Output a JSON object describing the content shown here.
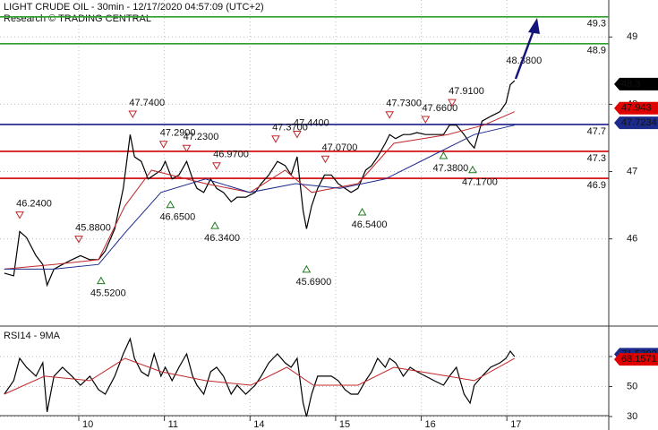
{
  "header": {
    "title": "LIGHT CRUDE OIL - 30min - 12/17/2020 04:57:09 (UTC+2)",
    "subtitle": "Research © TRADING CENTRAL"
  },
  "chart_data": [
    {
      "type": "line",
      "ylim": [
        44.73,
        49.55
      ],
      "yticks": [
        46,
        47,
        48,
        49
      ],
      "grid": true,
      "series": [
        {
          "color": "#000000",
          "x": [
            0.13,
            0.24,
            0.31,
            0.39,
            0.5,
            0.58,
            0.63,
            0.71,
            0.81,
            0.92,
            1.02,
            1.13,
            1.23,
            1.31,
            1.42,
            1.52,
            1.6,
            1.65,
            1.73,
            1.81,
            1.88,
            1.96,
            2.01,
            2.09,
            2.17,
            2.26,
            2.33,
            2.38,
            2.46,
            2.54,
            2.61,
            2.69,
            2.78,
            2.85,
            2.95,
            3.06,
            3.13,
            3.22,
            3.32,
            3.41,
            3.48,
            3.55,
            3.62,
            3.66,
            3.72,
            3.79,
            3.87,
            3.95,
            4.03,
            4.11,
            4.18,
            4.26,
            4.35,
            4.42,
            4.49,
            4.58,
            4.63,
            4.7,
            4.79,
            4.87,
            4.95,
            5.05,
            5.15,
            5.26,
            5.33,
            5.41,
            5.5,
            5.57,
            5.62,
            5.71,
            5.81,
            5.92,
            5.99,
            6.04,
            6.09
          ],
          "values": [
            45.49,
            45.45,
            46.11,
            46.02,
            45.75,
            45.62,
            45.31,
            45.55,
            45.62,
            45.69,
            45.75,
            45.69,
            45.69,
            45.82,
            46.15,
            46.75,
            47.55,
            47.22,
            47.15,
            46.89,
            46.95,
            47.02,
            47.15,
            46.89,
            46.95,
            47.15,
            46.89,
            46.75,
            46.69,
            46.89,
            46.75,
            46.69,
            46.55,
            46.62,
            46.62,
            46.69,
            46.82,
            46.95,
            47.15,
            47.09,
            46.95,
            47.22,
            46.42,
            46.15,
            46.49,
            46.75,
            46.95,
            46.95,
            46.82,
            46.75,
            46.69,
            46.75,
            47.02,
            47.09,
            47.22,
            47.42,
            47.55,
            47.49,
            47.55,
            47.55,
            47.58,
            47.55,
            47.55,
            47.55,
            47.69,
            47.69,
            47.55,
            47.42,
            47.35,
            47.75,
            47.82,
            47.89,
            48.02,
            48.29,
            48.35
          ]
        },
        {
          "color": "#c0282a",
          "x": [
            0.13,
            0.71,
            1.23,
            1.54,
            1.85,
            2.48,
            3.0,
            3.41,
            3.72,
            4.26,
            4.68,
            5.31,
            5.73,
            6.09
          ],
          "values": [
            45.55,
            45.62,
            45.69,
            46.49,
            47.02,
            46.82,
            46.69,
            47.02,
            46.69,
            46.82,
            47.42,
            47.55,
            47.69,
            47.89
          ]
        },
        {
          "color": "#1c2a8c",
          "x": [
            0.13,
            0.71,
            1.23,
            1.54,
            1.96,
            2.48,
            3.0,
            3.53,
            4.05,
            4.58,
            5.1,
            5.62,
            6.09
          ],
          "values": [
            45.55,
            45.55,
            45.62,
            46.09,
            46.69,
            46.89,
            46.69,
            46.82,
            46.75,
            46.89,
            47.22,
            47.55,
            47.69
          ]
        }
      ],
      "levels": [
        {
          "value": 49.3,
          "color": "#2e9e2e"
        },
        {
          "value": 48.9,
          "color": "#2e9e2e"
        },
        {
          "value": 47.7,
          "color": "#1c1c8c"
        },
        {
          "value": 47.3,
          "color": "#d00000"
        },
        {
          "value": 46.9,
          "color": "#d00000"
        }
      ],
      "price_tags": [
        {
          "value": 48.3,
          "color": "#000000"
        },
        {
          "value": 47.943,
          "color": "#e00000"
        },
        {
          "value": 47.7234,
          "color": "#1c2a8c"
        }
      ],
      "annotations": [
        {
          "label": "46.2400",
          "value": 46.24,
          "x": 0.31,
          "marker": "high"
        },
        {
          "label": "45.8800",
          "value": 45.88,
          "x": 1.0,
          "marker": "high"
        },
        {
          "label": "47.7400",
          "value": 47.74,
          "x": 1.63,
          "marker": "high"
        },
        {
          "label": "47.2900",
          "value": 47.29,
          "x": 1.99,
          "marker": "high"
        },
        {
          "label": "47.2300",
          "value": 47.23,
          "x": 2.26,
          "marker": "high"
        },
        {
          "label": "46.9700",
          "value": 46.97,
          "x": 2.61,
          "marker": "high"
        },
        {
          "label": "47.3700",
          "value": 47.37,
          "x": 3.3,
          "marker": "high"
        },
        {
          "label": "47.4400",
          "value": 47.44,
          "x": 3.55,
          "marker": "high"
        },
        {
          "label": "47.0700",
          "value": 47.07,
          "x": 3.88,
          "marker": "high"
        },
        {
          "label": "47.7300",
          "value": 47.73,
          "x": 4.63,
          "marker": "high"
        },
        {
          "label": "47.6600",
          "value": 47.66,
          "x": 5.05,
          "marker": "high"
        },
        {
          "label": "47.9100",
          "value": 47.91,
          "x": 5.36,
          "marker": "high"
        },
        {
          "label": "48.3800",
          "value": 48.38,
          "x": 6.2
        },
        {
          "label": "45.5200",
          "value": 45.52,
          "x": 1.26,
          "marker": "low"
        },
        {
          "label": "46.6500",
          "value": 46.65,
          "x": 2.07,
          "marker": "low"
        },
        {
          "label": "46.3400",
          "value": 46.34,
          "x": 2.59,
          "marker": "low"
        },
        {
          "label": "45.6900",
          "value": 45.69,
          "x": 3.66,
          "marker": "low"
        },
        {
          "label": "46.5400",
          "value": 46.54,
          "x": 4.31,
          "marker": "low"
        },
        {
          "label": "47.3800",
          "value": 47.38,
          "x": 5.26,
          "marker": "low"
        },
        {
          "label": "47.1700",
          "value": 47.17,
          "x": 5.6,
          "marker": "low"
        }
      ]
    },
    {
      "type": "line",
      "title": "RSI14 - 9MA",
      "xlim": [
        0.08,
        7.19
      ],
      "xticks": [
        {
          "value": 1,
          "label": "10"
        },
        {
          "value": 2,
          "label": "11"
        },
        {
          "value": 3,
          "label": "14"
        },
        {
          "value": 4,
          "label": "15"
        },
        {
          "value": 5,
          "label": "16"
        },
        {
          "value": 6,
          "label": "17"
        }
      ],
      "ylim": [
        24,
        89.7
      ],
      "yticks": [
        30,
        50,
        70
      ],
      "grid": true,
      "series": [
        {
          "color": "#000000",
          "x": [
            0.13,
            0.24,
            0.31,
            0.39,
            0.5,
            0.58,
            0.63,
            0.71,
            0.81,
            0.92,
            1.02,
            1.13,
            1.23,
            1.31,
            1.42,
            1.52,
            1.6,
            1.65,
            1.73,
            1.81,
            1.88,
            1.96,
            2.01,
            2.09,
            2.17,
            2.26,
            2.33,
            2.38,
            2.46,
            2.54,
            2.61,
            2.69,
            2.78,
            2.85,
            2.95,
            3.06,
            3.13,
            3.22,
            3.32,
            3.41,
            3.48,
            3.55,
            3.62,
            3.66,
            3.72,
            3.79,
            3.87,
            3.95,
            4.03,
            4.11,
            4.18,
            4.26,
            4.35,
            4.42,
            4.49,
            4.58,
            4.63,
            4.7,
            4.79,
            4.87,
            4.95,
            5.05,
            5.15,
            5.26,
            5.33,
            5.41,
            5.5,
            5.57,
            5.62,
            5.71,
            5.81,
            5.92,
            5.99,
            6.04,
            6.09
          ],
          "values": [
            44.9,
            53.9,
            68.8,
            62.8,
            56.9,
            65.8,
            33.0,
            56.9,
            62.8,
            56.9,
            50.9,
            56.9,
            47.9,
            44.9,
            56.9,
            71.8,
            81.9,
            68.8,
            59.9,
            56.9,
            71.8,
            56.9,
            62.8,
            53.9,
            62.8,
            71.8,
            56.9,
            50.9,
            44.9,
            59.9,
            62.8,
            56.9,
            44.9,
            50.9,
            44.9,
            50.9,
            56.9,
            65.8,
            71.8,
            65.8,
            62.8,
            68.8,
            39.0,
            30.0,
            44.9,
            56.9,
            56.9,
            56.9,
            53.9,
            47.9,
            44.9,
            44.9,
            53.9,
            59.9,
            68.8,
            62.8,
            68.8,
            65.8,
            56.9,
            62.8,
            59.9,
            56.9,
            53.9,
            50.9,
            56.9,
            62.8,
            44.9,
            39.0,
            50.9,
            56.9,
            62.8,
            65.8,
            68.8,
            73.6,
            70.0
          ]
        },
        {
          "color": "#c0282a",
          "x": [
            0.13,
            0.6,
            1.13,
            1.54,
            1.96,
            2.48,
            3.01,
            3.43,
            3.74,
            4.26,
            4.68,
            5.31,
            5.62,
            6.09
          ],
          "values": [
            44.9,
            56.9,
            53.9,
            68.8,
            59.9,
            53.9,
            50.9,
            62.8,
            50.9,
            50.9,
            62.8,
            56.9,
            53.9,
            68.8
          ]
        }
      ],
      "price_tags": [
        {
          "value": 71.5302,
          "color": "#1c2a8c"
        },
        {
          "value": 68.1571,
          "color": "#e00000"
        }
      ]
    }
  ]
}
